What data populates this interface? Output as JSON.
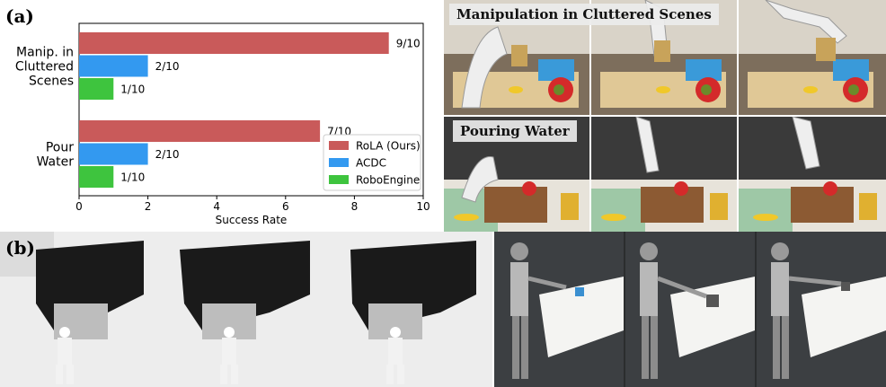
{
  "panels": {
    "a_label": "(a)",
    "b_label": "(b)"
  },
  "chart_data": {
    "type": "bar",
    "orientation": "horizontal",
    "categories": [
      "Manip. in\nCluttered\nScenes",
      "Pour\nWater"
    ],
    "series": [
      {
        "name": "RoLA (Ours)",
        "color": "#c95a5a",
        "values": [
          9,
          7
        ],
        "labels": [
          "9/10",
          "7/10"
        ]
      },
      {
        "name": "ACDC",
        "color": "#3399f0",
        "values": [
          2,
          2
        ],
        "labels": [
          "2/10",
          "2/10"
        ]
      },
      {
        "name": "RoboEngine",
        "color": "#3ec43e",
        "values": [
          1,
          1
        ],
        "labels": [
          "1/10",
          "1/10"
        ]
      }
    ],
    "xlabel": "Success Rate",
    "xlim": [
      0,
      10
    ],
    "xticks": [
      0,
      2,
      4,
      6,
      8,
      10
    ],
    "legend_position": "lower-right",
    "grid": false
  },
  "photos": {
    "manipulation_title": "Manipulation in Cluttered Scenes",
    "pouring_title": "Pouring Water"
  }
}
